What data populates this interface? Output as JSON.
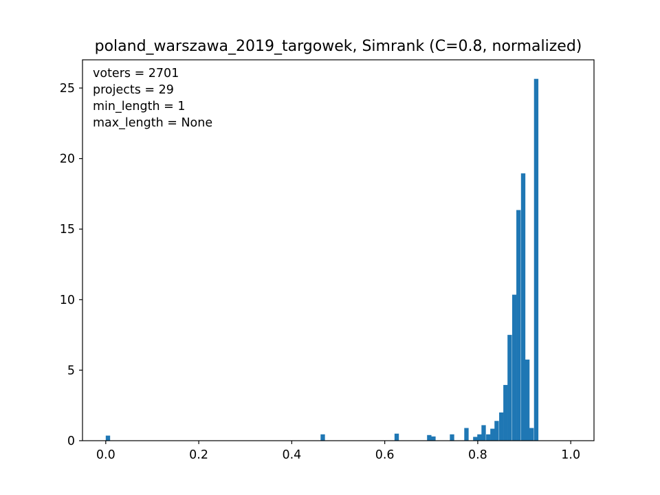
{
  "chart_data": {
    "type": "bar",
    "title": "poland_warszawa_2019_targowek, Simrank (C=0.8, normalized)",
    "xlabel": "",
    "ylabel": "",
    "xlim": [
      -0.05,
      1.05
    ],
    "ylim": [
      0,
      27
    ],
    "grid": false,
    "bar_color": "#1f77b4",
    "bin_width": 0.00939,
    "x_ticks": [
      {
        "value": 0.0,
        "label": "0.0"
      },
      {
        "value": 0.2,
        "label": "0.2"
      },
      {
        "value": 0.4,
        "label": "0.4"
      },
      {
        "value": 0.6,
        "label": "0.6"
      },
      {
        "value": 0.8,
        "label": "0.8"
      },
      {
        "value": 1.0,
        "label": "1.0"
      }
    ],
    "y_ticks": [
      {
        "value": 0,
        "label": "0"
      },
      {
        "value": 5,
        "label": "5"
      },
      {
        "value": 10,
        "label": "10"
      },
      {
        "value": 15,
        "label": "15"
      },
      {
        "value": 20,
        "label": "20"
      },
      {
        "value": 25,
        "label": "25"
      }
    ],
    "annotations": [
      "voters = 2701",
      "projects = 29",
      "min_length = 1",
      "max_length = None"
    ],
    "bins": [
      {
        "x": 0.0,
        "value": 0.36
      },
      {
        "x": 0.462,
        "value": 0.45
      },
      {
        "x": 0.621,
        "value": 0.5
      },
      {
        "x": 0.691,
        "value": 0.4
      },
      {
        "x": 0.7,
        "value": 0.3
      },
      {
        "x": 0.74,
        "value": 0.45
      },
      {
        "x": 0.771,
        "value": 0.9
      },
      {
        "x": 0.79,
        "value": 0.27
      },
      {
        "x": 0.799,
        "value": 0.45
      },
      {
        "x": 0.808,
        "value": 1.1
      },
      {
        "x": 0.818,
        "value": 0.45
      },
      {
        "x": 0.827,
        "value": 0.85
      },
      {
        "x": 0.836,
        "value": 1.4
      },
      {
        "x": 0.846,
        "value": 2.0
      },
      {
        "x": 0.855,
        "value": 3.95
      },
      {
        "x": 0.864,
        "value": 7.5
      },
      {
        "x": 0.874,
        "value": 10.35
      },
      {
        "x": 0.883,
        "value": 16.35
      },
      {
        "x": 0.893,
        "value": 18.95
      },
      {
        "x": 0.902,
        "value": 5.75
      },
      {
        "x": 0.911,
        "value": 0.9
      },
      {
        "x": 0.921,
        "value": 25.65
      }
    ]
  }
}
